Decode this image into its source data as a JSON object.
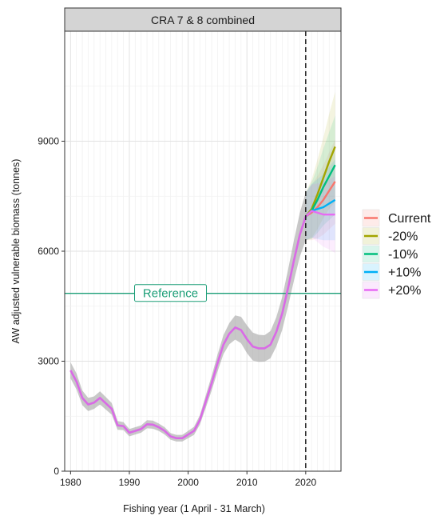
{
  "chart_data": {
    "type": "line",
    "panel_title": "CRA 7 & 8 combined",
    "xlabel": "Fishing year (1 April - 31 March)",
    "ylabel": "AW adjusted vulnerable biomass (tonnes)",
    "xlim": [
      1979,
      2026
    ],
    "ylim": [
      0,
      12000
    ],
    "x_ticks": [
      1980,
      1990,
      2000,
      2010,
      2020
    ],
    "y_ticks": [
      0,
      3000,
      6000,
      9000
    ],
    "grid": true,
    "legend_position": "right",
    "projection_start": 2020,
    "reference": {
      "label": "Reference",
      "value": 4850,
      "color": "#1b9e77"
    },
    "historical": {
      "color": "#d96ae6",
      "band_color": "#9a9a9a",
      "x": [
        1980,
        1981,
        1982,
        1983,
        1984,
        1985,
        1986,
        1987,
        1988,
        1989,
        1990,
        1991,
        1992,
        1993,
        1994,
        1995,
        1996,
        1997,
        1998,
        1999,
        2000,
        2001,
        2002,
        2003,
        2004,
        2005,
        2006,
        2007,
        2008,
        2009,
        2010,
        2011,
        2012,
        2013,
        2014,
        2015,
        2016,
        2017,
        2018,
        2019,
        2020
      ],
      "y": [
        2750,
        2450,
        2000,
        1820,
        1870,
        2000,
        1850,
        1700,
        1250,
        1230,
        1050,
        1100,
        1150,
        1280,
        1270,
        1200,
        1100,
        950,
        900,
        900,
        1000,
        1100,
        1400,
        1900,
        2400,
        2950,
        3450,
        3750,
        3920,
        3850,
        3600,
        3400,
        3350,
        3350,
        3450,
        3800,
        4300,
        5000,
        5750,
        6450,
        6950
      ],
      "band": [
        220,
        220,
        200,
        180,
        170,
        180,
        170,
        160,
        120,
        110,
        100,
        100,
        100,
        110,
        110,
        100,
        100,
        90,
        90,
        90,
        100,
        110,
        130,
        170,
        200,
        230,
        260,
        290,
        330,
        360,
        380,
        380,
        370,
        360,
        370,
        400,
        450,
        500,
        550,
        600,
        650
      ]
    },
    "series": [
      {
        "name": "Current",
        "color": "#f8766d",
        "x": [
          2020,
          2021,
          2022,
          2023,
          2024,
          2025
        ],
        "y": [
          6950,
          7050,
          7200,
          7400,
          7650,
          7900
        ],
        "band": [
          650,
          750,
          850,
          950,
          1050,
          1150
        ]
      },
      {
        "name": "-20%",
        "color": "#a3a500",
        "x": [
          2020,
          2021,
          2022,
          2023,
          2024,
          2025
        ],
        "y": [
          6950,
          7150,
          7550,
          8000,
          8450,
          8850
        ],
        "band": [
          650,
          800,
          950,
          1100,
          1300,
          1500
        ]
      },
      {
        "name": "-10%",
        "color": "#00bf7d",
        "x": [
          2020,
          2021,
          2022,
          2023,
          2024,
          2025
        ],
        "y": [
          6950,
          7100,
          7400,
          7750,
          8050,
          8350
        ],
        "band": [
          650,
          770,
          900,
          1050,
          1200,
          1350
        ]
      },
      {
        "name": "+10%",
        "color": "#00b0f6",
        "x": [
          2020,
          2021,
          2022,
          2023,
          2024,
          2025
        ],
        "y": [
          6950,
          7100,
          7150,
          7200,
          7300,
          7400
        ],
        "band": [
          650,
          730,
          820,
          900,
          1000,
          1100
        ]
      },
      {
        "name": "+20%",
        "color": "#e76bf3",
        "x": [
          2020,
          2021,
          2022,
          2023,
          2024,
          2025
        ],
        "y": [
          6950,
          7100,
          7050,
          7000,
          7000,
          7000
        ],
        "band": [
          650,
          720,
          800,
          880,
          950,
          1050
        ]
      }
    ]
  }
}
